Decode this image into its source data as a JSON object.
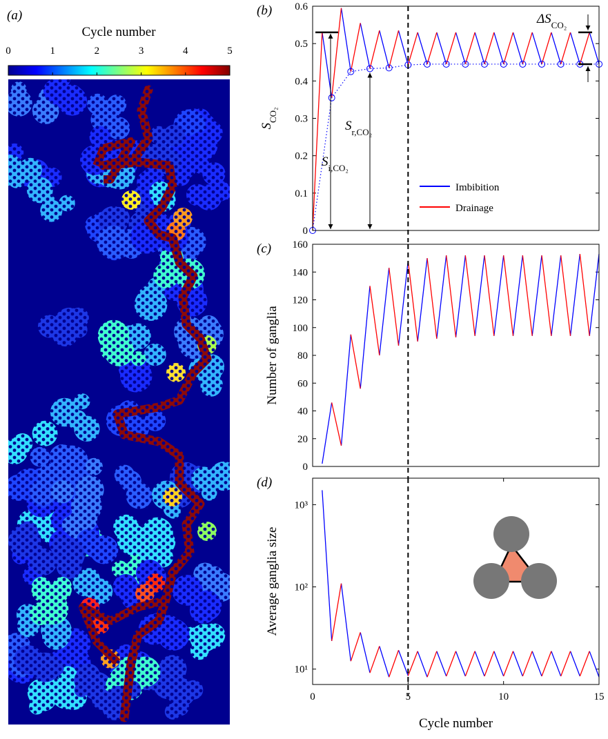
{
  "chart_data": [
    {
      "type": "colormap",
      "label": "(a)",
      "title": "Cycle number",
      "clim": [
        0,
        5
      ],
      "ticks": [
        0,
        1,
        2,
        3,
        4,
        5
      ],
      "colormap": "jet"
    },
    {
      "type": "line",
      "label": "(b)",
      "ylabel": {
        "text": "S",
        "sub": "CO₂"
      },
      "xlim": [
        0,
        15
      ],
      "ylim": [
        0,
        0.6
      ],
      "yticks": [
        0,
        0.1,
        0.2,
        0.3,
        0.4,
        0.5,
        0.6
      ],
      "vline": 5,
      "legend": "lower right",
      "series": [
        {
          "name": "Imbibition",
          "color": "#0000ff",
          "x": [
            0.5,
            1,
            null,
            1.5,
            2,
            null,
            2.5,
            3,
            null,
            3.5,
            4,
            null,
            4.5,
            5,
            null,
            5.5,
            6,
            null,
            6.5,
            7,
            null,
            7.5,
            8,
            null,
            8.5,
            9,
            null,
            9.5,
            10,
            null,
            10.5,
            11,
            null,
            11.5,
            12,
            null,
            12.5,
            13,
            null,
            13.5,
            14,
            null,
            14.5,
            15
          ],
          "values": [
            0.53,
            0.355,
            null,
            0.595,
            0.425,
            null,
            0.555,
            0.433,
            null,
            0.535,
            0.435,
            null,
            0.535,
            0.443,
            null,
            0.53,
            0.445,
            null,
            0.53,
            0.445,
            null,
            0.53,
            0.445,
            null,
            0.53,
            0.445,
            null,
            0.53,
            0.445,
            null,
            0.53,
            0.445,
            null,
            0.53,
            0.445,
            null,
            0.53,
            0.445,
            null,
            0.53,
            0.445,
            null,
            0.53,
            0.445
          ]
        },
        {
          "name": "Drainage",
          "color": "#ff0000",
          "x": [
            0,
            0.5,
            null,
            1,
            1.5,
            null,
            2,
            2.5,
            null,
            3,
            3.5,
            null,
            4,
            4.5,
            null,
            5,
            5.5,
            null,
            6,
            6.5,
            null,
            7,
            7.5,
            null,
            8,
            8.5,
            null,
            9,
            9.5,
            null,
            10,
            10.5,
            null,
            11,
            11.5,
            null,
            12,
            12.5,
            null,
            13,
            13.5,
            null,
            14,
            14.5
          ],
          "values": [
            0,
            0.53,
            null,
            0.355,
            0.595,
            null,
            0.425,
            0.555,
            null,
            0.433,
            0.535,
            null,
            0.435,
            0.535,
            null,
            0.443,
            0.53,
            null,
            0.445,
            0.53,
            null,
            0.445,
            0.53,
            null,
            0.445,
            0.53,
            null,
            0.445,
            0.53,
            null,
            0.445,
            0.53,
            null,
            0.445,
            0.53,
            null,
            0.445,
            0.53,
            null,
            0.445,
            0.53,
            null,
            0.445,
            0.53
          ]
        }
      ],
      "markers": {
        "color": "#0000ff",
        "x": [
          0,
          1,
          2,
          3,
          4,
          5,
          6,
          7,
          8,
          9,
          10,
          11,
          12,
          13,
          14,
          15
        ],
        "values": [
          0,
          0.355,
          0.425,
          0.433,
          0.435,
          0.443,
          0.445,
          0.445,
          0.445,
          0.445,
          0.445,
          0.445,
          0.445,
          0.445,
          0.445,
          0.445
        ]
      },
      "annotations": [
        {
          "text": "S",
          "sub": "i,CO₂"
        },
        {
          "text": "S",
          "sub": "r,CO₂"
        },
        {
          "text": "ΔS",
          "sub": "CO₂"
        }
      ]
    },
    {
      "type": "line",
      "label": "(c)",
      "ylabel": "Number of ganglia",
      "xlim": [
        0,
        15
      ],
      "ylim": [
        0,
        160
      ],
      "yticks": [
        0,
        20,
        40,
        60,
        80,
        100,
        120,
        140,
        160
      ],
      "vline": 5,
      "series": [
        {
          "color": "#0000ff",
          "x": [
            0.5,
            1,
            null,
            1.5,
            2,
            null,
            2.5,
            3,
            null,
            3.5,
            4,
            null,
            4.5,
            5,
            null,
            5.5,
            6,
            null,
            6.5,
            7,
            null,
            7.5,
            8,
            null,
            8.5,
            9,
            null,
            9.5,
            10,
            null,
            10.5,
            11,
            null,
            11.5,
            12,
            null,
            12.5,
            13,
            null,
            13.5,
            14,
            null,
            14.5,
            15
          ],
          "values": [
            2,
            46,
            null,
            15,
            95,
            null,
            56,
            130,
            null,
            80,
            143,
            null,
            87,
            148,
            null,
            90,
            150,
            null,
            92,
            152,
            null,
            93,
            152,
            null,
            94,
            152,
            null,
            94,
            152,
            null,
            94,
            152,
            null,
            94,
            152,
            null,
            94,
            152,
            null,
            94,
            153,
            null,
            94,
            153
          ]
        },
        {
          "color": "#ff0000",
          "x": [
            1,
            1.5,
            null,
            2,
            2.5,
            null,
            3,
            3.5,
            null,
            4,
            4.5,
            null,
            5,
            5.5,
            null,
            6,
            6.5,
            null,
            7,
            7.5,
            null,
            8,
            8.5,
            null,
            9,
            9.5,
            null,
            10,
            10.5,
            null,
            11,
            11.5,
            null,
            12,
            12.5,
            null,
            13,
            13.5,
            null,
            14,
            14.5
          ],
          "values": [
            46,
            15,
            null,
            95,
            56,
            null,
            130,
            80,
            null,
            143,
            87,
            null,
            148,
            90,
            null,
            150,
            92,
            null,
            152,
            93,
            null,
            152,
            94,
            null,
            152,
            94,
            null,
            152,
            94,
            null,
            152,
            94,
            null,
            152,
            94,
            null,
            152,
            94,
            null,
            153,
            94
          ]
        }
      ]
    },
    {
      "type": "line",
      "label": "(d)",
      "ylabel": "Average ganglia size",
      "xlabel": "Cycle number",
      "yscale": "log",
      "xlim": [
        0,
        15
      ],
      "ylim": [
        6.5,
        2100
      ],
      "xticks": [
        0,
        5,
        10,
        15
      ],
      "yticks": [
        {
          "value": 10,
          "label": "10¹"
        },
        {
          "value": 100,
          "label": "10²"
        },
        {
          "value": 1000,
          "label": "10³"
        }
      ],
      "vline": 5,
      "series": [
        {
          "color": "#0000ff",
          "x": [
            0.5,
            1,
            null,
            1.5,
            2,
            null,
            2.5,
            3,
            null,
            3.5,
            4,
            null,
            4.5,
            5,
            null,
            5.5,
            6,
            null,
            6.5,
            7,
            null,
            7.5,
            8,
            null,
            8.5,
            9,
            null,
            9.5,
            10,
            null,
            10.5,
            11,
            null,
            11.5,
            12,
            null,
            12.5,
            13,
            null,
            13.5,
            14,
            null,
            14.5,
            15
          ],
          "values": [
            1500,
            22,
            null,
            110,
            12.5,
            null,
            28,
            9,
            null,
            19,
            8,
            null,
            17,
            8.3,
            null,
            16.5,
            8,
            null,
            16.5,
            8.2,
            null,
            16.5,
            8.2,
            null,
            16.5,
            8.2,
            null,
            16.5,
            8.2,
            null,
            16.5,
            8.2,
            null,
            16.5,
            8.2,
            null,
            16.5,
            8.2,
            null,
            16.5,
            8.2,
            null,
            16.5,
            8
          ]
        },
        {
          "color": "#ff0000",
          "x": [
            1,
            1.5,
            null,
            2,
            2.5,
            null,
            3,
            3.5,
            null,
            4,
            4.5,
            null,
            5,
            5.5,
            null,
            6,
            6.5,
            null,
            7,
            7.5,
            null,
            8,
            8.5,
            null,
            9,
            9.5,
            null,
            10,
            10.5,
            null,
            11,
            11.5,
            null,
            12,
            12.5,
            null,
            13,
            13.5,
            null,
            14,
            14.5
          ],
          "values": [
            22,
            110,
            null,
            12.5,
            28,
            null,
            9,
            19,
            null,
            8,
            17,
            null,
            8.3,
            16.5,
            null,
            8,
            16.5,
            null,
            8.2,
            16.5,
            null,
            8.2,
            16.5,
            null,
            8.2,
            16.5,
            null,
            8.2,
            16.5,
            null,
            8.2,
            16.5,
            null,
            8.2,
            16.5,
            null,
            8.2,
            16.5,
            null,
            8.2,
            16.5
          ]
        }
      ]
    }
  ]
}
